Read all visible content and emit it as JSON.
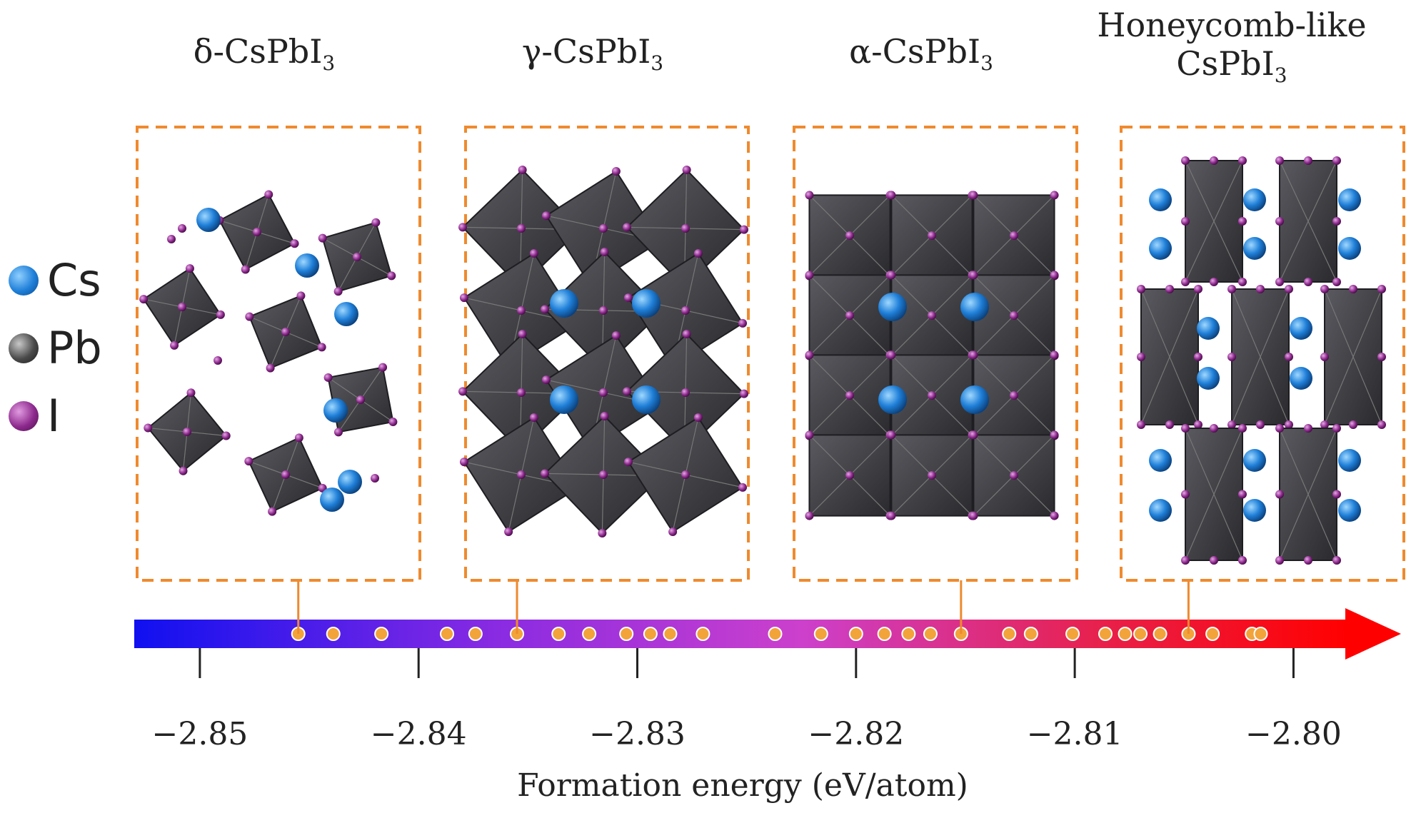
{
  "phases": [
    {
      "line1": "δ-CsPbI",
      "sub": "3",
      "line0": "",
      "energy": -2.8455,
      "structure": "delta"
    },
    {
      "line1": "γ-CsPbI",
      "sub": "3",
      "line0": "",
      "energy": -2.8355,
      "structure": "gamma"
    },
    {
      "line1": "α-CsPbI",
      "sub": "3",
      "line0": "",
      "energy": -2.8152,
      "structure": "alpha"
    },
    {
      "line1": "CsPbI",
      "sub": "3",
      "line0": "Honeycomb-like",
      "energy": -2.8048,
      "structure": "honeycomb"
    }
  ],
  "legend": [
    {
      "label": "Cs",
      "color": "#1f7fd8"
    },
    {
      "label": "Pb",
      "color": "#4a4a4a"
    },
    {
      "label": "I",
      "color": "#8e2a8e"
    }
  ],
  "axis": {
    "label": "Formation energy (eV/atom)",
    "min": -2.853,
    "max": -2.7975,
    "ticks": [
      {
        "value": -2.85,
        "label": "−2.85"
      },
      {
        "value": -2.84,
        "label": "−2.84"
      },
      {
        "value": -2.83,
        "label": "−2.83"
      },
      {
        "value": -2.82,
        "label": "−2.82"
      },
      {
        "value": -2.81,
        "label": "−2.81"
      },
      {
        "value": -2.8,
        "label": "−2.80"
      }
    ],
    "gradient": [
      "#1010f0",
      "#8a2be2",
      "#cc40cc",
      "#e8204a",
      "#ff0000"
    ]
  },
  "energy_points": [
    -2.8455,
    -2.8439,
    -2.8417,
    -2.8387,
    -2.8374,
    -2.8355,
    -2.8336,
    -2.8322,
    -2.8305,
    -2.8294,
    -2.8285,
    -2.827,
    -2.8237,
    -2.8216,
    -2.82,
    -2.8187,
    -2.8176,
    -2.8166,
    -2.8152,
    -2.813,
    -2.812,
    -2.8101,
    -2.8086,
    -2.8077,
    -2.807,
    -2.8061,
    -2.8048,
    -2.8037,
    -2.8019,
    -2.8015
  ],
  "colors": {
    "box": "#ef8a2e",
    "point": "#f2a33a",
    "pb": "#3c3c40",
    "cs": "#1f7fd8",
    "iodine": "#8e2a8e"
  }
}
